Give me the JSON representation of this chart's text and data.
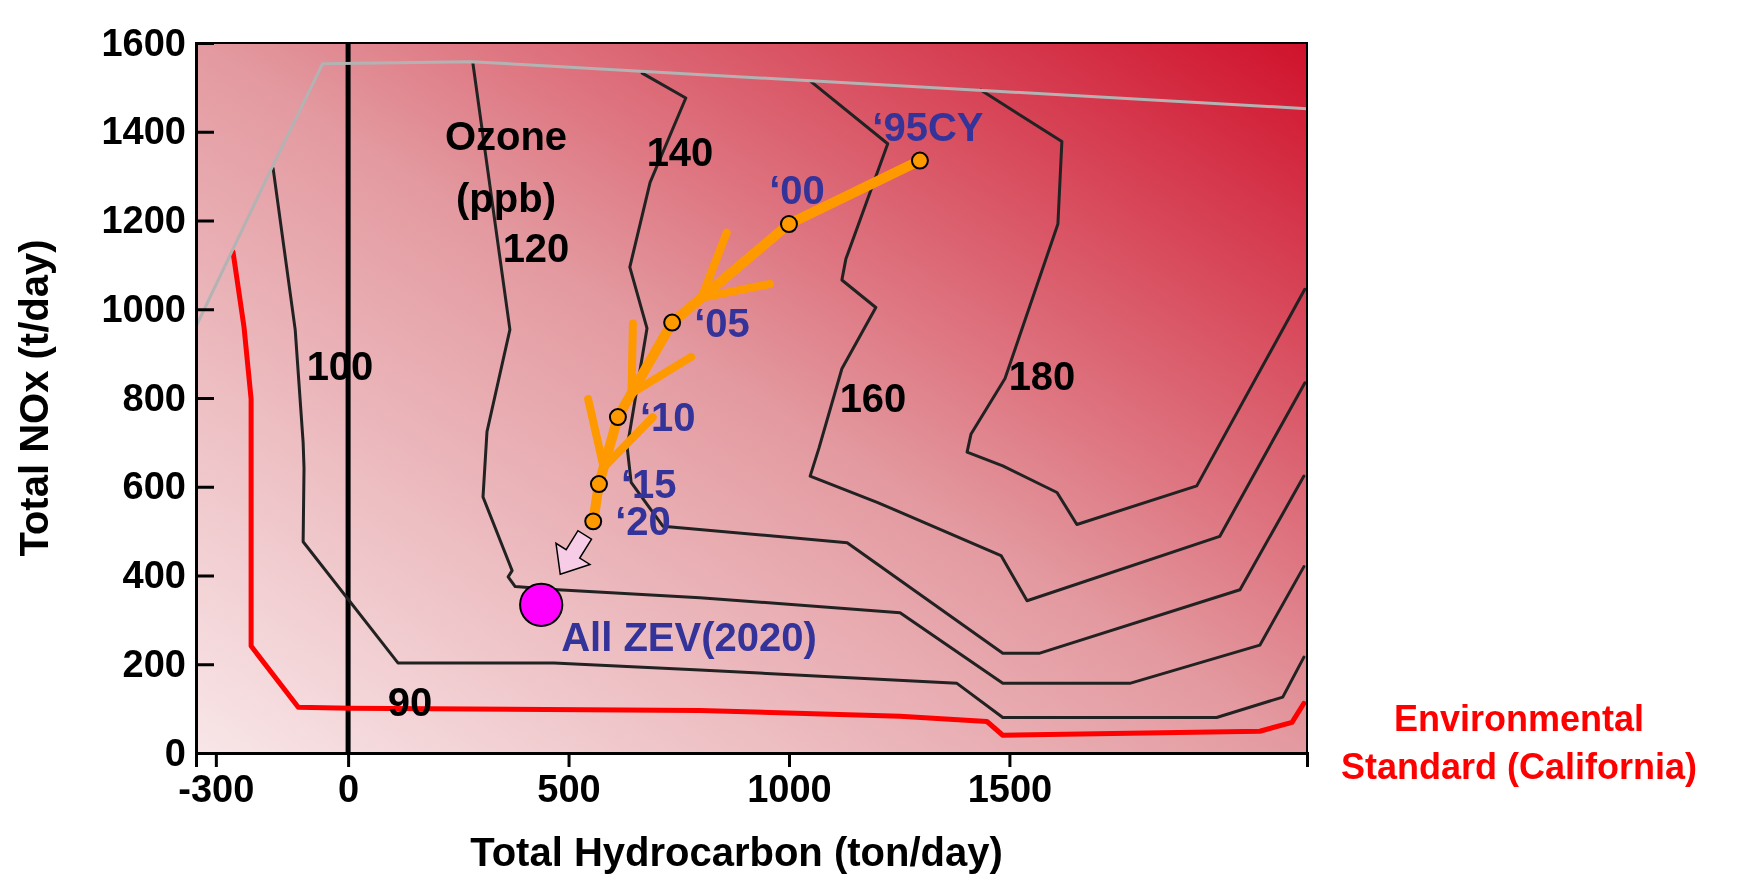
{
  "chart_data": {
    "type": "line",
    "xlabel": "Total Hydrocarbon (ton/day)",
    "ylabel": "Total NOx (t/day)",
    "xlim": [
      -345,
      2175
    ],
    "ylim": [
      0,
      1600
    ],
    "xticks": [
      -300,
      0,
      500,
      1000,
      1500
    ],
    "yticks": [
      0,
      200,
      400,
      600,
      800,
      1000,
      1200,
      1400,
      1600
    ],
    "ref_lines": [
      {
        "axis": "x",
        "value": 0,
        "color": "#000000"
      }
    ],
    "series": [
      {
        "name": "Environmental Standard (California)",
        "color": "#ff0000",
        "x": [
          -261,
          -236,
          -220,
          -220,
          -113,
          5,
          798,
          1252,
          1449,
          1485,
          2068,
          2141,
          2168
        ],
        "values": [
          1129,
          959,
          798,
          241,
          103,
          101,
          96,
          83,
          71,
          40,
          49,
          69,
          112
        ]
      },
      {
        "color": "#222222",
        "x": [
          -170,
          -120,
          -102,
          -100,
          -102,
          113,
          467,
          798,
          1381,
          1485,
          1970,
          2120,
          2168
        ],
        "values": [
          1317,
          954,
          700,
          642,
          476,
          203,
          203,
          187,
          157,
          80,
          80,
          126,
          216
        ]
      },
      {
        "color": "#222222",
        "x": [
          283,
          340,
          367,
          315,
          306,
          372,
          363,
          379,
          476,
          798,
          1252,
          1485,
          1773,
          2068,
          2168
        ],
        "values": [
          1555,
          1147,
          954,
          724,
          577,
          411,
          397,
          375,
          368,
          350,
          316,
          157,
          157,
          243,
          420
        ]
      },
      {
        "color": "#222222",
        "x": [
          667,
          766,
          685,
          639,
          678,
          633,
          642,
          714,
          1132,
          1485,
          1569,
          2023,
          2168
        ],
        "values": [
          1532,
          1476,
          1286,
          1095,
          957,
          689,
          610,
          511,
          474,
          225,
          225,
          368,
          624
        ]
      },
      {
        "color": "#222222",
        "x": [
          1050,
          1224,
          1129,
          1120,
          1197,
          1120,
          1068,
          1048,
          1200,
          1481,
          1540,
          1977,
          2170
        ],
        "values": [
          1513,
          1373,
          1113,
          1066,
          1004,
          866,
          687,
          624,
          565,
          445,
          343,
          488,
          834
        ]
      },
      {
        "color": "#222222",
        "x": [
          1435,
          1619,
          1610,
          1490,
          1413,
          1404,
          1485,
          1608,
          1653,
          1925,
          2170
        ],
        "values": [
          1494,
          1378,
          1192,
          844,
          719,
          678,
          647,
          587,
          515,
          602,
          1045
        ]
      },
      {
        "color": "#b3b3b3",
        "x": [
          -345,
          -172,
          -58,
          278,
          2175
        ],
        "values": [
          961,
          1321,
          1553,
          1558,
          1452
        ]
      },
      {
        "color": "#ff9900",
        "marker": "circle",
        "x": [
          1297,
          1000,
          735,
          612,
          569,
          556
        ],
        "values": [
          1335,
          1192,
          970,
          757,
          606,
          522
        ]
      },
      {
        "type": "scatter",
        "color": "#ff00ff",
        "marker": "circle",
        "x": [
          438
        ],
        "values": [
          334
        ]
      }
    ],
    "annotations": [
      "Ozone (ppb)",
      "90",
      "100",
      "120",
      "140",
      "160",
      "180",
      {
        "text": "‘95CY",
        "x": 1297,
        "y": 1335
      },
      {
        "text": "‘00",
        "x": 1000,
        "y": 1192
      },
      {
        "text": "‘05",
        "x": 735,
        "y": 970
      },
      {
        "text": "‘10",
        "x": 612,
        "y": 757
      },
      {
        "text": "‘15",
        "x": 569,
        "y": 606
      },
      {
        "text": "‘20",
        "x": 556,
        "y": 522
      },
      {
        "text": "All ZEV(2020)",
        "x": 438,
        "y": 334
      }
    ]
  }
}
